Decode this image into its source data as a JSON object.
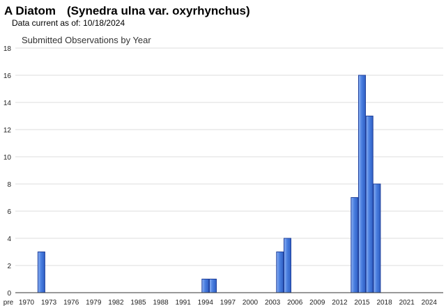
{
  "header": {
    "common_name": "A Diatom",
    "scientific_name": "(Synedra ulna var. oxyrhynchus)",
    "data_current_label": "Data current as of:",
    "data_current_date": "10/18/2024"
  },
  "colors": {
    "bar_fill": "#4a7fe0",
    "bar_stroke": "#1f3f9a",
    "grid": "#dddddd",
    "axis": "#333333"
  },
  "chart_data": {
    "type": "bar",
    "title": "Submitted Observations by Year",
    "xlabel": "",
    "ylabel": "",
    "ylim": [
      0,
      18
    ],
    "y_ticks": [
      0,
      2,
      4,
      6,
      8,
      10,
      12,
      14,
      16,
      18
    ],
    "grid": true,
    "x_tick_labels": [
      "pre",
      "1970",
      "1973",
      "1976",
      "1979",
      "1982",
      "1985",
      "1988",
      "1991",
      "1994",
      "1997",
      "2000",
      "2003",
      "2006",
      "2009",
      "2012",
      "2015",
      "2018",
      "2021",
      "2024"
    ],
    "categories": [
      "1972",
      "1994",
      "1995",
      "2004",
      "2005",
      "2014",
      "2015",
      "2016",
      "2017"
    ],
    "values": [
      3,
      1,
      1,
      3,
      4,
      7,
      16,
      13,
      8
    ]
  }
}
